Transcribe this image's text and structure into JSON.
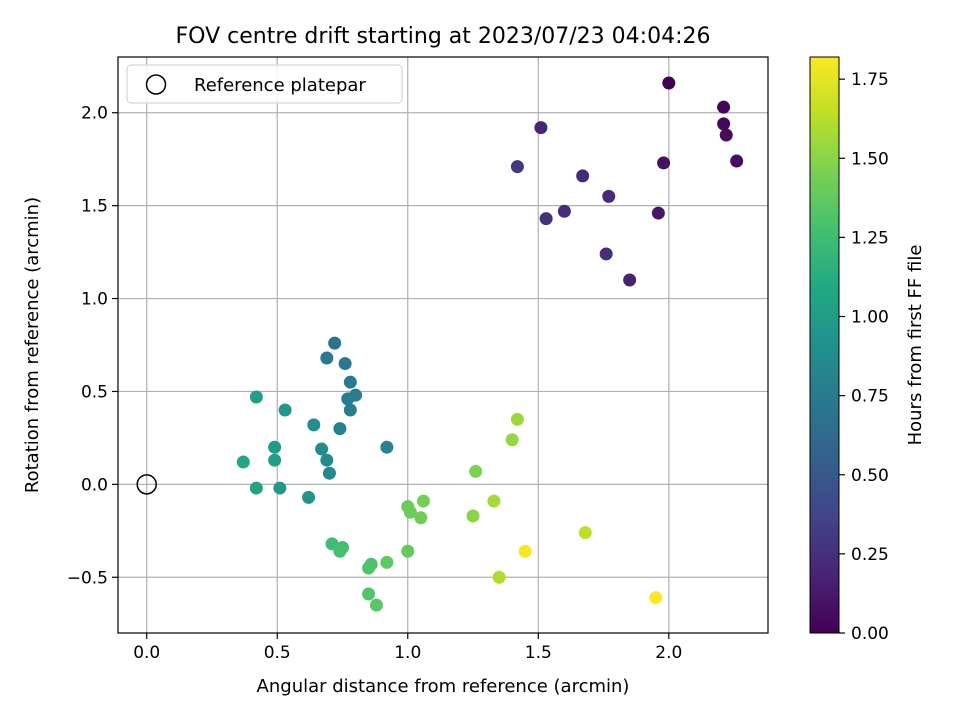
{
  "chart_data": {
    "type": "scatter",
    "title": "FOV centre drift starting at 2023/07/23 04:04:26",
    "xlabel": "Angular distance from reference (arcmin)",
    "ylabel": "Rotation from reference (arcmin)",
    "xlim": [
      -0.11,
      2.38
    ],
    "ylim": [
      -0.8,
      2.3
    ],
    "xticks": [
      0.0,
      0.5,
      1.0,
      1.5,
      2.0
    ],
    "xtick_labels": [
      "0.0",
      "0.5",
      "1.0",
      "1.5",
      "2.0"
    ],
    "yticks": [
      -0.5,
      0.0,
      0.5,
      1.0,
      1.5,
      2.0
    ],
    "ytick_labels": [
      "−0.5",
      "0.0",
      "0.5",
      "1.0",
      "1.5",
      "2.0"
    ],
    "grid": true,
    "legend": {
      "location": "upper left",
      "entries": [
        "Reference platepar"
      ]
    },
    "reference_point": {
      "x": 0.0,
      "y": 0.0,
      "label": "Reference platepar"
    },
    "colorbar": {
      "label": "Hours from first FF file",
      "colormap": "viridis",
      "range": [
        0.0,
        1.82
      ],
      "ticks": [
        0.0,
        0.25,
        0.5,
        0.75,
        1.0,
        1.25,
        1.5,
        1.75
      ],
      "tick_labels": [
        "0.00",
        "0.25",
        "0.50",
        "0.75",
        "1.00",
        "1.25",
        "1.50",
        "1.75"
      ]
    },
    "points": [
      {
        "x": 2.0,
        "y": 2.16,
        "c": 0.0
      },
      {
        "x": 2.21,
        "y": 2.03,
        "c": 0.02
      },
      {
        "x": 2.21,
        "y": 1.94,
        "c": 0.03
      },
      {
        "x": 2.22,
        "y": 1.88,
        "c": 0.05
      },
      {
        "x": 2.26,
        "y": 1.74,
        "c": 0.06
      },
      {
        "x": 1.98,
        "y": 1.73,
        "c": 0.08
      },
      {
        "x": 1.96,
        "y": 1.46,
        "c": 0.12
      },
      {
        "x": 1.51,
        "y": 1.92,
        "c": 0.18
      },
      {
        "x": 1.85,
        "y": 1.1,
        "c": 0.17
      },
      {
        "x": 1.67,
        "y": 1.66,
        "c": 0.2
      },
      {
        "x": 1.77,
        "y": 1.55,
        "c": 0.22
      },
      {
        "x": 1.6,
        "y": 1.47,
        "c": 0.23
      },
      {
        "x": 1.53,
        "y": 1.43,
        "c": 0.25
      },
      {
        "x": 1.76,
        "y": 1.24,
        "c": 0.24
      },
      {
        "x": 1.42,
        "y": 1.71,
        "c": 0.3
      },
      {
        "x": 0.72,
        "y": 0.76,
        "c": 0.7
      },
      {
        "x": 0.69,
        "y": 0.68,
        "c": 0.72
      },
      {
        "x": 0.76,
        "y": 0.65,
        "c": 0.73
      },
      {
        "x": 0.78,
        "y": 0.55,
        "c": 0.74
      },
      {
        "x": 0.8,
        "y": 0.48,
        "c": 0.75
      },
      {
        "x": 0.77,
        "y": 0.46,
        "c": 0.76
      },
      {
        "x": 0.78,
        "y": 0.4,
        "c": 0.77
      },
      {
        "x": 0.74,
        "y": 0.3,
        "c": 0.79
      },
      {
        "x": 0.92,
        "y": 0.2,
        "c": 0.81
      },
      {
        "x": 0.7,
        "y": 0.06,
        "c": 0.84
      },
      {
        "x": 0.69,
        "y": 0.13,
        "c": 0.86
      },
      {
        "x": 0.67,
        "y": 0.19,
        "c": 0.88
      },
      {
        "x": 0.64,
        "y": 0.32,
        "c": 0.9
      },
      {
        "x": 0.62,
        "y": -0.07,
        "c": 0.93
      },
      {
        "x": 0.53,
        "y": 0.4,
        "c": 0.95
      },
      {
        "x": 0.51,
        "y": -0.02,
        "c": 0.97
      },
      {
        "x": 0.49,
        "y": 0.2,
        "c": 0.99
      },
      {
        "x": 0.49,
        "y": 0.13,
        "c": 1.01
      },
      {
        "x": 0.42,
        "y": 0.47,
        "c": 1.03
      },
      {
        "x": 0.42,
        "y": -0.02,
        "c": 1.05
      },
      {
        "x": 0.37,
        "y": 0.12,
        "c": 1.07
      },
      {
        "x": 0.71,
        "y": -0.32,
        "c": 1.25
      },
      {
        "x": 0.75,
        "y": -0.34,
        "c": 1.27
      },
      {
        "x": 0.74,
        "y": -0.36,
        "c": 1.28
      },
      {
        "x": 0.86,
        "y": -0.43,
        "c": 1.3
      },
      {
        "x": 0.85,
        "y": -0.45,
        "c": 1.31
      },
      {
        "x": 0.85,
        "y": -0.59,
        "c": 1.32
      },
      {
        "x": 0.88,
        "y": -0.65,
        "c": 1.34
      },
      {
        "x": 0.92,
        "y": -0.42,
        "c": 1.36
      },
      {
        "x": 1.0,
        "y": -0.36,
        "c": 1.38
      },
      {
        "x": 1.0,
        "y": -0.12,
        "c": 1.4
      },
      {
        "x": 1.01,
        "y": -0.15,
        "c": 1.41
      },
      {
        "x": 1.05,
        "y": -0.18,
        "c": 1.42
      },
      {
        "x": 1.06,
        "y": -0.09,
        "c": 1.43
      },
      {
        "x": 1.26,
        "y": 0.07,
        "c": 1.46
      },
      {
        "x": 1.25,
        "y": -0.17,
        "c": 1.5
      },
      {
        "x": 1.4,
        "y": 0.24,
        "c": 1.53
      },
      {
        "x": 1.42,
        "y": 0.35,
        "c": 1.55
      },
      {
        "x": 1.33,
        "y": -0.09,
        "c": 1.57
      },
      {
        "x": 1.35,
        "y": -0.5,
        "c": 1.6
      },
      {
        "x": 1.68,
        "y": -0.26,
        "c": 1.64
      },
      {
        "x": 1.45,
        "y": -0.36,
        "c": 1.8
      },
      {
        "x": 1.95,
        "y": -0.61,
        "c": 1.82
      }
    ]
  }
}
